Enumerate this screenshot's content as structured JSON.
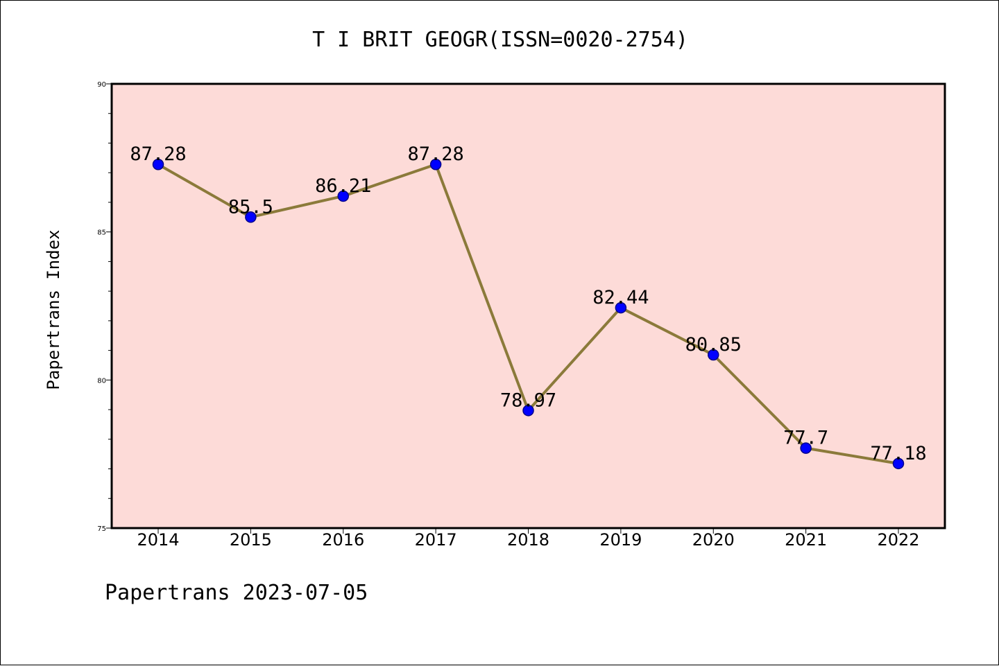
{
  "chart": {
    "title": "T I BRIT GEOGR(ISSN=0020-2754)",
    "ylabel": "Papertrans Index",
    "footer": "Papertrans 2023-07-05"
  },
  "colors": {
    "plot_background": "#fddbd8",
    "line": "#8b7a3a",
    "marker_fill": "#0000ff",
    "marker_edge": "#00008b"
  },
  "chart_data": {
    "type": "line",
    "title": "T I BRIT GEOGR(ISSN=0020-2754)",
    "xlabel": "",
    "ylabel": "Papertrans Index",
    "categories": [
      "2014",
      "2015",
      "2016",
      "2017",
      "2018",
      "2019",
      "2020",
      "2021",
      "2022"
    ],
    "values": [
      87.28,
      85.5,
      86.21,
      87.28,
      78.97,
      82.44,
      80.85,
      77.7,
      77.18
    ],
    "data_labels": [
      "87.28",
      "85.5",
      "86.21",
      "87.28",
      "78.97",
      "82.44",
      "80.85",
      "77.7",
      "77.18"
    ],
    "ylim": [
      75,
      90
    ],
    "yticks": [
      "75",
      "80",
      "85",
      "90"
    ],
    "grid": false,
    "legend": "none"
  }
}
